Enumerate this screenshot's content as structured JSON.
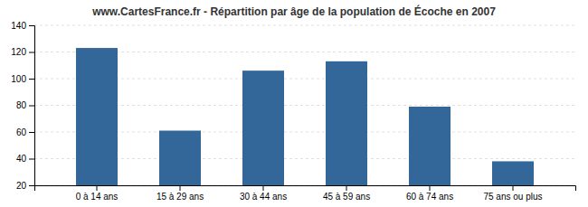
{
  "chart_data": {
    "type": "bar",
    "title": "www.CartesFrance.fr - Répartition par âge de la population de Écoche en 2007",
    "categories": [
      "0 à 14 ans",
      "15 à 29 ans",
      "30 à 44 ans",
      "45 à 59 ans",
      "60 à 74 ans",
      "75 ans ou plus"
    ],
    "values": [
      123,
      61,
      106,
      113,
      79,
      38
    ],
    "color": "#336699",
    "ylim": [
      20,
      140
    ],
    "yticks": [
      20,
      40,
      60,
      80,
      100,
      120,
      140
    ],
    "grid": true
  }
}
